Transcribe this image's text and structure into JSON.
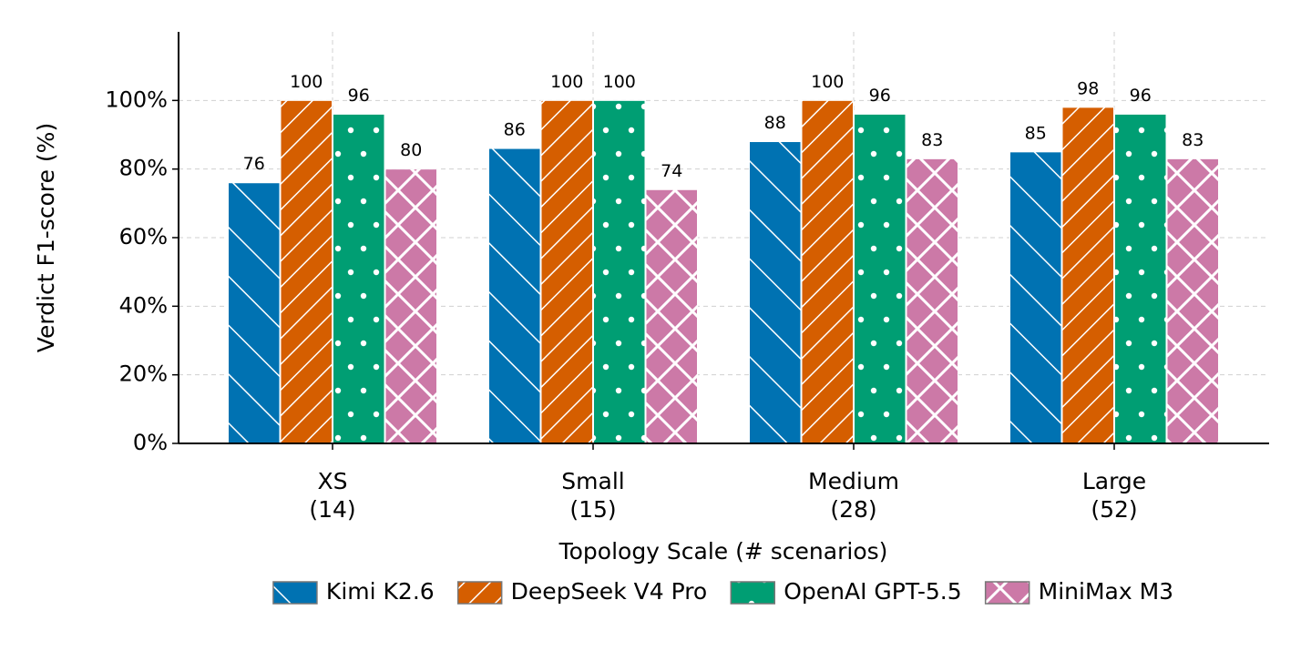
{
  "chart_data": {
    "type": "bar",
    "y_label": "Verdict F1-score (%)",
    "x_label": "Topology Scale (# scenarios)",
    "categories": [
      "XS\n(14)",
      "Small\n(15)",
      "Medium\n(28)",
      "Large\n(52)"
    ],
    "series": [
      {
        "name": "Kimi K2.6",
        "color": "#0072b2",
        "hatch": "\\",
        "values": [
          76,
          86,
          88,
          85
        ]
      },
      {
        "name": "DeepSeek V4 Pro",
        "color": "#d55e00",
        "hatch": "/",
        "values": [
          100,
          100,
          100,
          98
        ]
      },
      {
        "name": "OpenAI GPT-5.5",
        "color": "#009e73",
        "hatch": ".",
        "values": [
          96,
          100,
          96,
          96
        ]
      },
      {
        "name": "MiniMax M3",
        "color": "#cc79a7",
        "hatch": "x",
        "values": [
          80,
          74,
          83,
          83
        ]
      }
    ],
    "ylim": [
      0,
      120
    ],
    "yticks": [
      {
        "value": 0,
        "label": "0%"
      },
      {
        "value": 20,
        "label": "20%"
      },
      {
        "value": 40,
        "label": "40%"
      },
      {
        "value": 60,
        "label": "60%"
      },
      {
        "value": 80,
        "label": "80%"
      },
      {
        "value": 100,
        "label": "100%"
      }
    ],
    "grid": true,
    "legend": "bottom"
  }
}
